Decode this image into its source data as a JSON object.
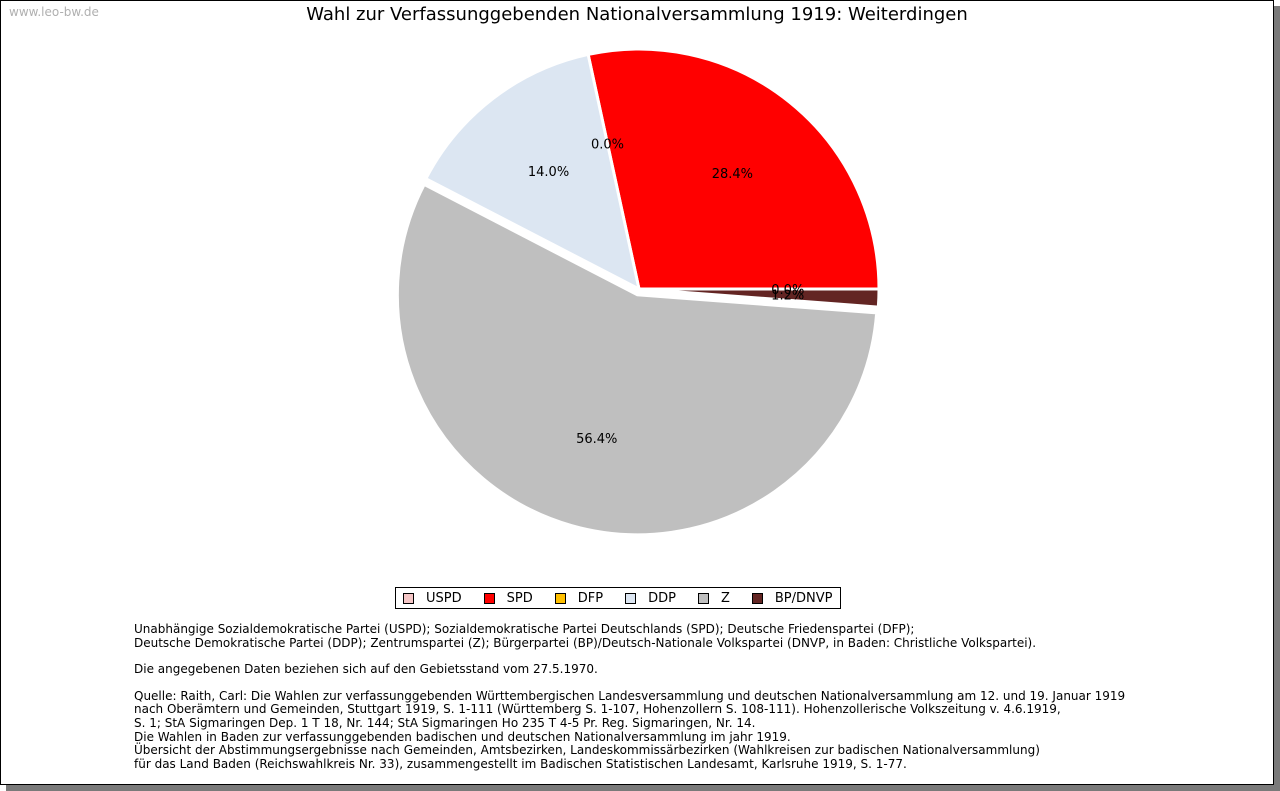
{
  "watermark": "www.leo-bw.de",
  "colors": {
    "USPD": "#f5c6c6",
    "SPD": "#ff0000",
    "DFP": "#ffc000",
    "DDP": "#dce6f2",
    "Z": "#bfbfbf",
    "BP/DNVP": "#632523"
  },
  "chart_data": {
    "type": "pie",
    "title": "Wahl zur Verfassunggebenden Nationalversammlung 1919: Weiterdingen",
    "legend_position": "bottom",
    "start_angle_deg": 0,
    "direction": "counterclockwise",
    "slices": [
      {
        "name": "USPD",
        "value": 0.0,
        "label": "0.0%",
        "exploded": false
      },
      {
        "name": "SPD",
        "value": 28.4,
        "label": "28.4%",
        "exploded": false
      },
      {
        "name": "DFP",
        "value": 0.0,
        "label": "0.0%",
        "exploded": false
      },
      {
        "name": "DDP",
        "value": 14.0,
        "label": "14.0%",
        "exploded": false
      },
      {
        "name": "Z",
        "value": 56.4,
        "label": "56.4%",
        "exploded": true
      },
      {
        "name": "BP/DNVP",
        "value": 1.2,
        "label": "1.2%",
        "exploded": false
      }
    ]
  },
  "notes": {
    "definitions": [
      "Unabhängige Sozialdemokratische Partei (USPD); Sozialdemokratische Partei Deutschlands (SPD); Deutsche Friedenspartei (DFP);",
      "Deutsche Demokratische Partei (DDP); Zentrumspartei (Z); Bürgerpartei (BP)/Deutsch-Nationale Volkspartei (DNVP, in Baden: Christliche Volkspartei)."
    ],
    "territory": "Die angegebenen Daten beziehen sich auf den Gebietsstand vom 27.5.1970.",
    "source": [
      "Quelle: Raith, Carl: Die Wahlen zur verfassunggebenden Württembergischen Landesversammlung und deutschen Nationalversammlung am 12. und 19. Januar 1919",
      "nach Oberämtern und Gemeinden, Stuttgart 1919, S. 1-111 (Württemberg S. 1-107, Hohenzollern S. 108-111). Hohenzollerische Volkszeitung v. 4.6.1919,",
      "S. 1; StA Sigmaringen Dep. 1 T 18, Nr. 144; StA Sigmaringen Ho 235 T 4-5 Pr. Reg. Sigmaringen, Nr. 14.",
      "Die Wahlen in Baden zur verfassunggebenden badischen und deutschen Nationalversammlung im jahr 1919.",
      "Übersicht der Abstimmungsergebnisse nach Gemeinden, Amtsbezirken, Landeskommissärbezirken (Wahlkreisen zur badischen Nationalversammlung)",
      "für das Land Baden (Reichswahlkreis Nr. 33), zusammengestellt im Badischen Statistischen Landesamt, Karlsruhe 1919, S. 1-77."
    ]
  }
}
